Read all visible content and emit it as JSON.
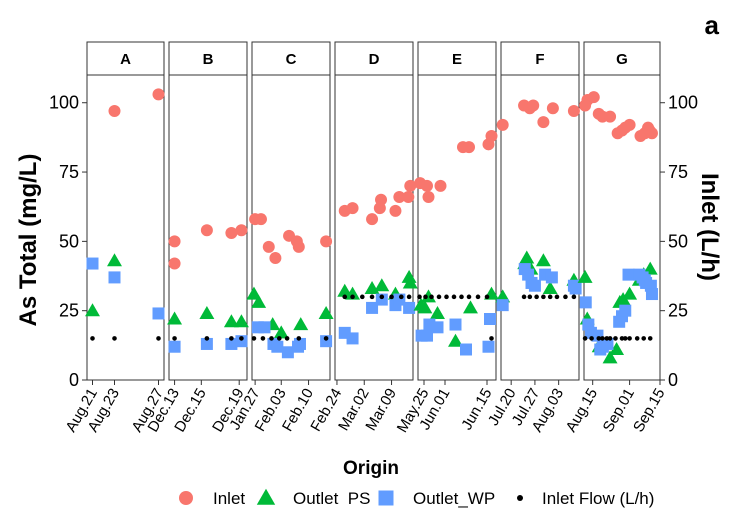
{
  "chart_data": {
    "type": "scatter",
    "panel_letter": "a",
    "xlabel": "Origin",
    "ylabel_left": "As Total (mg/L)",
    "ylabel_right": "Inlet (L/h)",
    "ylim": [
      0,
      110
    ],
    "y_ticks": [
      0,
      25,
      50,
      75,
      100
    ],
    "colors": {
      "Inlet": "#F8766D",
      "Outlet  PS": "#00BA38",
      "Outlet_WP": "#619CFF",
      "Inlet Flow (L/h)": "#000000"
    },
    "legend": [
      {
        "label": "Inlet",
        "shape": "circle",
        "color": "#F8766D"
      },
      {
        "label": "Outlet  PS",
        "shape": "triangle",
        "color": "#00BA38"
      },
      {
        "label": "Outlet_WP",
        "shape": "square",
        "color": "#619CFF"
      },
      {
        "label": "Inlet Flow (L/h)",
        "shape": "dot",
        "color": "#000000"
      }
    ],
    "panels": [
      {
        "name": "A",
        "xrange": [
          0,
          7
        ],
        "ticks": [
          {
            "x": 0.5,
            "label": "Aug.21"
          },
          {
            "x": 2.5,
            "label": "Aug.23"
          },
          {
            "x": 6.5,
            "label": "Aug.27"
          }
        ],
        "series": {
          "Inlet": [
            [
              2.5,
              97
            ],
            [
              6.5,
              103
            ]
          ],
          "Outlet  PS": [
            [
              0.5,
              25
            ],
            [
              2.5,
              43
            ]
          ],
          "Outlet_WP": [
            [
              0.5,
              42
            ],
            [
              2.5,
              37
            ],
            [
              6.5,
              24
            ]
          ],
          "Inlet Flow (L/h)": [
            [
              0.5,
              15
            ],
            [
              2.5,
              15
            ],
            [
              6.5,
              15
            ]
          ]
        }
      },
      {
        "name": "B",
        "xrange": [
          0,
          7
        ],
        "ticks": [
          {
            "x": 0.5,
            "label": "Dec.13"
          },
          {
            "x": 2.9,
            "label": "Dec.15"
          },
          {
            "x": 6.3,
            "label": "Dec.19"
          }
        ],
        "series": {
          "Inlet": [
            [
              0.5,
              50
            ],
            [
              0.5,
              42
            ],
            [
              3.4,
              54
            ],
            [
              5.6,
              53
            ],
            [
              6.5,
              54
            ]
          ],
          "Outlet  PS": [
            [
              0.5,
              22
            ],
            [
              3.4,
              24
            ],
            [
              5.6,
              21
            ],
            [
              6.5,
              21
            ]
          ],
          "Outlet_WP": [
            [
              0.5,
              12
            ],
            [
              3.4,
              13
            ],
            [
              5.6,
              13
            ],
            [
              6.5,
              14
            ]
          ],
          "Inlet Flow (L/h)": [
            [
              0.5,
              15
            ],
            [
              3.4,
              15
            ],
            [
              5.6,
              15
            ],
            [
              6.5,
              15
            ]
          ]
        }
      },
      {
        "name": "C",
        "xrange": [
          0,
          20
        ],
        "ticks": [
          {
            "x": 0.8,
            "label": "Jan.27"
          },
          {
            "x": 7.5,
            "label": "Feb.03"
          },
          {
            "x": 14.5,
            "label": "Feb.10"
          }
        ],
        "series": {
          "Inlet": [
            [
              0.8,
              58
            ],
            [
              2.3,
              58
            ],
            [
              4.3,
              48
            ],
            [
              6,
              44
            ],
            [
              9.5,
              52
            ],
            [
              11.5,
              50
            ],
            [
              12,
              48
            ],
            [
              19,
              50
            ]
          ],
          "Outlet  PS": [
            [
              0.5,
              31
            ],
            [
              1.7,
              28
            ],
            [
              5.3,
              20
            ],
            [
              7.5,
              17
            ],
            [
              12.5,
              20
            ],
            [
              19,
              24
            ]
          ],
          "Outlet_WP": [
            [
              1.5,
              19
            ],
            [
              3.2,
              19
            ],
            [
              5.5,
              13
            ],
            [
              6.5,
              12
            ],
            [
              9.2,
              10
            ],
            [
              11.8,
              12
            ],
            [
              12.3,
              13
            ],
            [
              19,
              14
            ]
          ],
          "Inlet Flow (L/h)": [
            [
              0.5,
              15
            ],
            [
              2.8,
              15
            ],
            [
              5,
              15
            ],
            [
              7,
              15
            ],
            [
              9,
              15
            ],
            [
              12,
              15
            ],
            [
              19,
              15
            ]
          ]
        }
      },
      {
        "name": "D",
        "xrange": [
          0,
          20
        ],
        "ticks": [
          {
            "x": 0.5,
            "label": "Feb.24"
          },
          {
            "x": 7.5,
            "label": "Mar.02"
          },
          {
            "x": 14.5,
            "label": "Mar.09"
          }
        ],
        "series": {
          "Inlet": [
            [
              2.5,
              61
            ],
            [
              4.5,
              62
            ],
            [
              9.5,
              58
            ],
            [
              11.5,
              62
            ],
            [
              11.8,
              65
            ],
            [
              15.5,
              61
            ],
            [
              16.5,
              66
            ],
            [
              18.8,
              66
            ],
            [
              19.3,
              70
            ]
          ],
          "Outlet  PS": [
            [
              2.5,
              32
            ],
            [
              4.5,
              31
            ],
            [
              9.5,
              33
            ],
            [
              12,
              34
            ],
            [
              15.5,
              31
            ],
            [
              19,
              37
            ],
            [
              19.3,
              35
            ]
          ],
          "Outlet_WP": [
            [
              2.5,
              17
            ],
            [
              4.5,
              15
            ],
            [
              9.5,
              26
            ],
            [
              12,
              29
            ],
            [
              15.5,
              27
            ],
            [
              16.5,
              29
            ],
            [
              19,
              26
            ]
          ],
          "Inlet Flow (L/h)": [
            [
              2.5,
              30
            ],
            [
              4.5,
              30
            ],
            [
              7,
              30
            ],
            [
              9.5,
              30
            ],
            [
              12,
              30
            ],
            [
              14.5,
              30
            ],
            [
              17,
              30
            ],
            [
              19,
              30
            ]
          ]
        }
      },
      {
        "name": "E",
        "xrange": [
          0,
          26
        ],
        "ticks": [
          {
            "x": 2,
            "label": "May.25"
          },
          {
            "x": 9,
            "label": "Jun.01"
          },
          {
            "x": 23,
            "label": "Jun.15"
          }
        ],
        "series": {
          "Inlet": [
            [
              0.7,
              71
            ],
            [
              3,
              70
            ],
            [
              3.5,
              66
            ],
            [
              7.5,
              70
            ],
            [
              15,
              84
            ],
            [
              17,
              84
            ],
            [
              23.5,
              85
            ],
            [
              24.5,
              88
            ]
          ],
          "Outlet  PS": [
            [
              1,
              27
            ],
            [
              2.3,
              26
            ],
            [
              3.5,
              30
            ],
            [
              6.5,
              24
            ],
            [
              12.5,
              14
            ],
            [
              17.5,
              26
            ],
            [
              24.5,
              31
            ]
          ],
          "Outlet_WP": [
            [
              1.2,
              16
            ],
            [
              3,
              16
            ],
            [
              3.8,
              20
            ],
            [
              6.5,
              19
            ],
            [
              12.5,
              20
            ],
            [
              16,
              11
            ],
            [
              23.5,
              12
            ],
            [
              24,
              22
            ]
          ],
          "Inlet Flow (L/h)": [
            [
              0.5,
              30
            ],
            [
              2.5,
              30
            ],
            [
              4.5,
              30
            ],
            [
              7,
              30
            ],
            [
              9.5,
              30
            ],
            [
              12,
              30
            ],
            [
              14.5,
              30
            ],
            [
              17,
              30
            ],
            [
              20,
              30
            ],
            [
              23,
              30
            ],
            [
              24.5,
              15
            ]
          ]
        }
      },
      {
        "name": "F",
        "xrange": [
          0,
          23
        ],
        "ticks": [
          {
            "x": 3,
            "label": "Jul.20"
          },
          {
            "x": 10,
            "label": "Jul.27"
          },
          {
            "x": 17,
            "label": "Aug.03"
          }
        ],
        "series": {
          "Inlet": [
            [
              0.5,
              92
            ],
            [
              6.8,
              99
            ],
            [
              8.5,
              98
            ],
            [
              9.5,
              99
            ],
            [
              12.5,
              93
            ],
            [
              15.3,
              98
            ],
            [
              21.5,
              97
            ]
          ],
          "Outlet  PS": [
            [
              0.5,
              30
            ],
            [
              7,
              42
            ],
            [
              7.6,
              44
            ],
            [
              8.8,
              40
            ],
            [
              12.5,
              43
            ],
            [
              14.5,
              33
            ],
            [
              21.5,
              36
            ]
          ],
          "Outlet_WP": [
            [
              0.5,
              27
            ],
            [
              7,
              40
            ],
            [
              8,
              38
            ],
            [
              9,
              35
            ],
            [
              10,
              34
            ],
            [
              13,
              38
            ],
            [
              15,
              37
            ],
            [
              21.5,
              34
            ],
            [
              22,
              33
            ]
          ],
          "Inlet Flow (L/h)": [
            [
              6.8,
              30
            ],
            [
              8.5,
              30
            ],
            [
              10.5,
              30
            ],
            [
              12.5,
              30
            ],
            [
              14.5,
              30
            ],
            [
              16.5,
              30
            ],
            [
              19,
              30
            ],
            [
              21.5,
              30
            ]
          ]
        }
      },
      {
        "name": "G",
        "xrange": [
          0,
          35
        ],
        "ticks": [
          {
            "x": 4,
            "label": "Aug.15"
          },
          {
            "x": 21,
            "label": "Sep.01"
          },
          {
            "x": 35,
            "label": "Sep.15"
          }
        ],
        "series": {
          "Inlet": [
            [
              0.5,
              99
            ],
            [
              1.6,
              101
            ],
            [
              4.5,
              102
            ],
            [
              6.8,
              96
            ],
            [
              8.5,
              95
            ],
            [
              12,
              95
            ],
            [
              15.5,
              89
            ],
            [
              17.5,
              90
            ],
            [
              19,
              91
            ],
            [
              21,
              92
            ],
            [
              26,
              88
            ],
            [
              28,
              89
            ],
            [
              29.5,
              91
            ],
            [
              30.2,
              90
            ],
            [
              31.3,
              89
            ]
          ],
          "Outlet  PS": [
            [
              0.5,
              37
            ],
            [
              1.5,
              22
            ],
            [
              7,
              12
            ],
            [
              8.2,
              14
            ],
            [
              12,
              8
            ],
            [
              15,
              11
            ],
            [
              16.5,
              28
            ],
            [
              18,
              29
            ],
            [
              21,
              31
            ],
            [
              25.5,
              36
            ],
            [
              27.5,
              38
            ],
            [
              30.5,
              40
            ]
          ],
          "Outlet_WP": [
            [
              0.8,
              28
            ],
            [
              2,
              20
            ],
            [
              3.2,
              17
            ],
            [
              6.2,
              16
            ],
            [
              7.5,
              11
            ],
            [
              8.7,
              12
            ],
            [
              10.8,
              13
            ],
            [
              16.2,
              21
            ],
            [
              17.5,
              23
            ],
            [
              19,
              25
            ],
            [
              20.5,
              38
            ],
            [
              25.5,
              38
            ],
            [
              27,
              37
            ],
            [
              28,
              36
            ],
            [
              28.6,
              35
            ],
            [
              30.8,
              34
            ],
            [
              31.3,
              31
            ]
          ],
          "Inlet Flow (L/h)": [
            [
              0.5,
              15
            ],
            [
              3.5,
              15
            ],
            [
              6.8,
              15
            ],
            [
              8.5,
              15
            ],
            [
              10.5,
              15
            ],
            [
              12,
              15
            ],
            [
              14.5,
              15
            ],
            [
              17.5,
              15
            ],
            [
              19,
              15
            ],
            [
              21,
              15
            ],
            [
              24.5,
              15
            ],
            [
              27.5,
              15
            ],
            [
              30.5,
              15
            ]
          ]
        }
      }
    ]
  }
}
